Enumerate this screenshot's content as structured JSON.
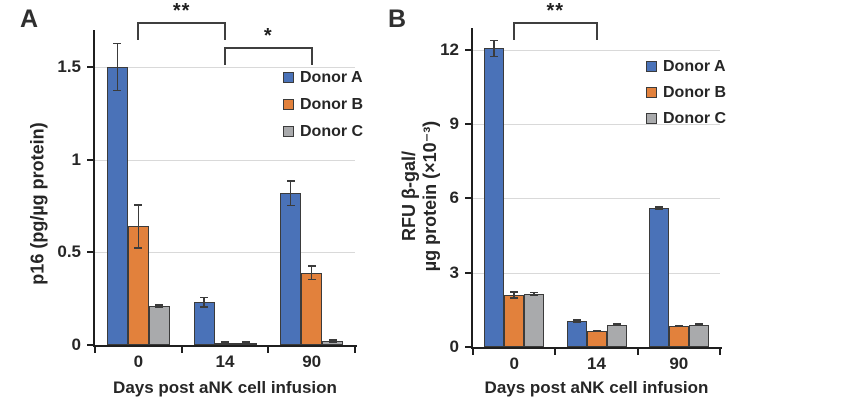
{
  "panel_labels": [
    "A",
    "B"
  ],
  "colors": {
    "donor_a": "#4a72b8",
    "donor_b": "#e2813c",
    "donor_c": "#a9aaac",
    "bar_border": "#3b3b3b",
    "gridline": "#d9d9d9",
    "axis": "#1f1f1f",
    "text": "#262626"
  },
  "chart_data": [
    {
      "panel": "A",
      "type": "bar",
      "categories": [
        "0",
        "14",
        "90"
      ],
      "series": [
        {
          "name": "Donor A",
          "color": "#4a72b8",
          "values": [
            1.5,
            0.23,
            0.82
          ],
          "errors": [
            0.13,
            0.03,
            0.07
          ]
        },
        {
          "name": "Donor B",
          "color": "#e2813c",
          "values": [
            0.64,
            0.01,
            0.39
          ],
          "errors": [
            0.12,
            0.01,
            0.04
          ]
        },
        {
          "name": "Donor C",
          "color": "#a9aaac",
          "values": [
            0.21,
            0.01,
            0.02
          ],
          "errors": [
            0.01,
            0.01,
            0.01
          ]
        }
      ],
      "xlabel": "Days post aNK cell infusion",
      "ylabel": "p16 (pg/µg protein)",
      "ylabel_lines": [
        "p16 (pg/µg protein)"
      ],
      "yticks": [
        0,
        0.5,
        1,
        1.5
      ],
      "ytick_labels": [
        "0",
        "0.5",
        "1",
        "1.5"
      ],
      "ylim": [
        0,
        1.7
      ],
      "grid": true,
      "legend_position": "upper-right-inside",
      "significance": [
        {
          "label": "**",
          "from": "0",
          "to": "14"
        },
        {
          "label": "*",
          "from": "14",
          "to": "90"
        }
      ]
    },
    {
      "panel": "B",
      "type": "bar",
      "categories": [
        "0",
        "14",
        "90"
      ],
      "series": [
        {
          "name": "Donor A",
          "color": "#4a72b8",
          "values": [
            12.05,
            1.05,
            5.6
          ],
          "errors": [
            0.35,
            0.08,
            0.08
          ]
        },
        {
          "name": "Donor B",
          "color": "#e2813c",
          "values": [
            2.1,
            0.65,
            0.85
          ],
          "errors": [
            0.15,
            0.05,
            0.05
          ]
        },
        {
          "name": "Donor C",
          "color": "#a9aaac",
          "values": [
            2.15,
            0.9,
            0.9
          ],
          "errors": [
            0.08,
            0.05,
            0.05
          ]
        }
      ],
      "xlabel": "Days post aNK cell infusion",
      "ylabel": "RFU β-gal/ µg protein (×10⁻³)",
      "ylabel_lines": [
        "RFU β-gal/",
        "µg protein (×10⁻³)"
      ],
      "yticks": [
        0,
        3,
        6,
        9,
        12
      ],
      "ytick_labels": [
        "0",
        "3",
        "6",
        "9",
        "12"
      ],
      "ylim": [
        0,
        12.9
      ],
      "grid": true,
      "legend_position": "upper-right-inside",
      "significance": [
        {
          "label": "**",
          "from": "0",
          "to": "14"
        }
      ]
    }
  ]
}
